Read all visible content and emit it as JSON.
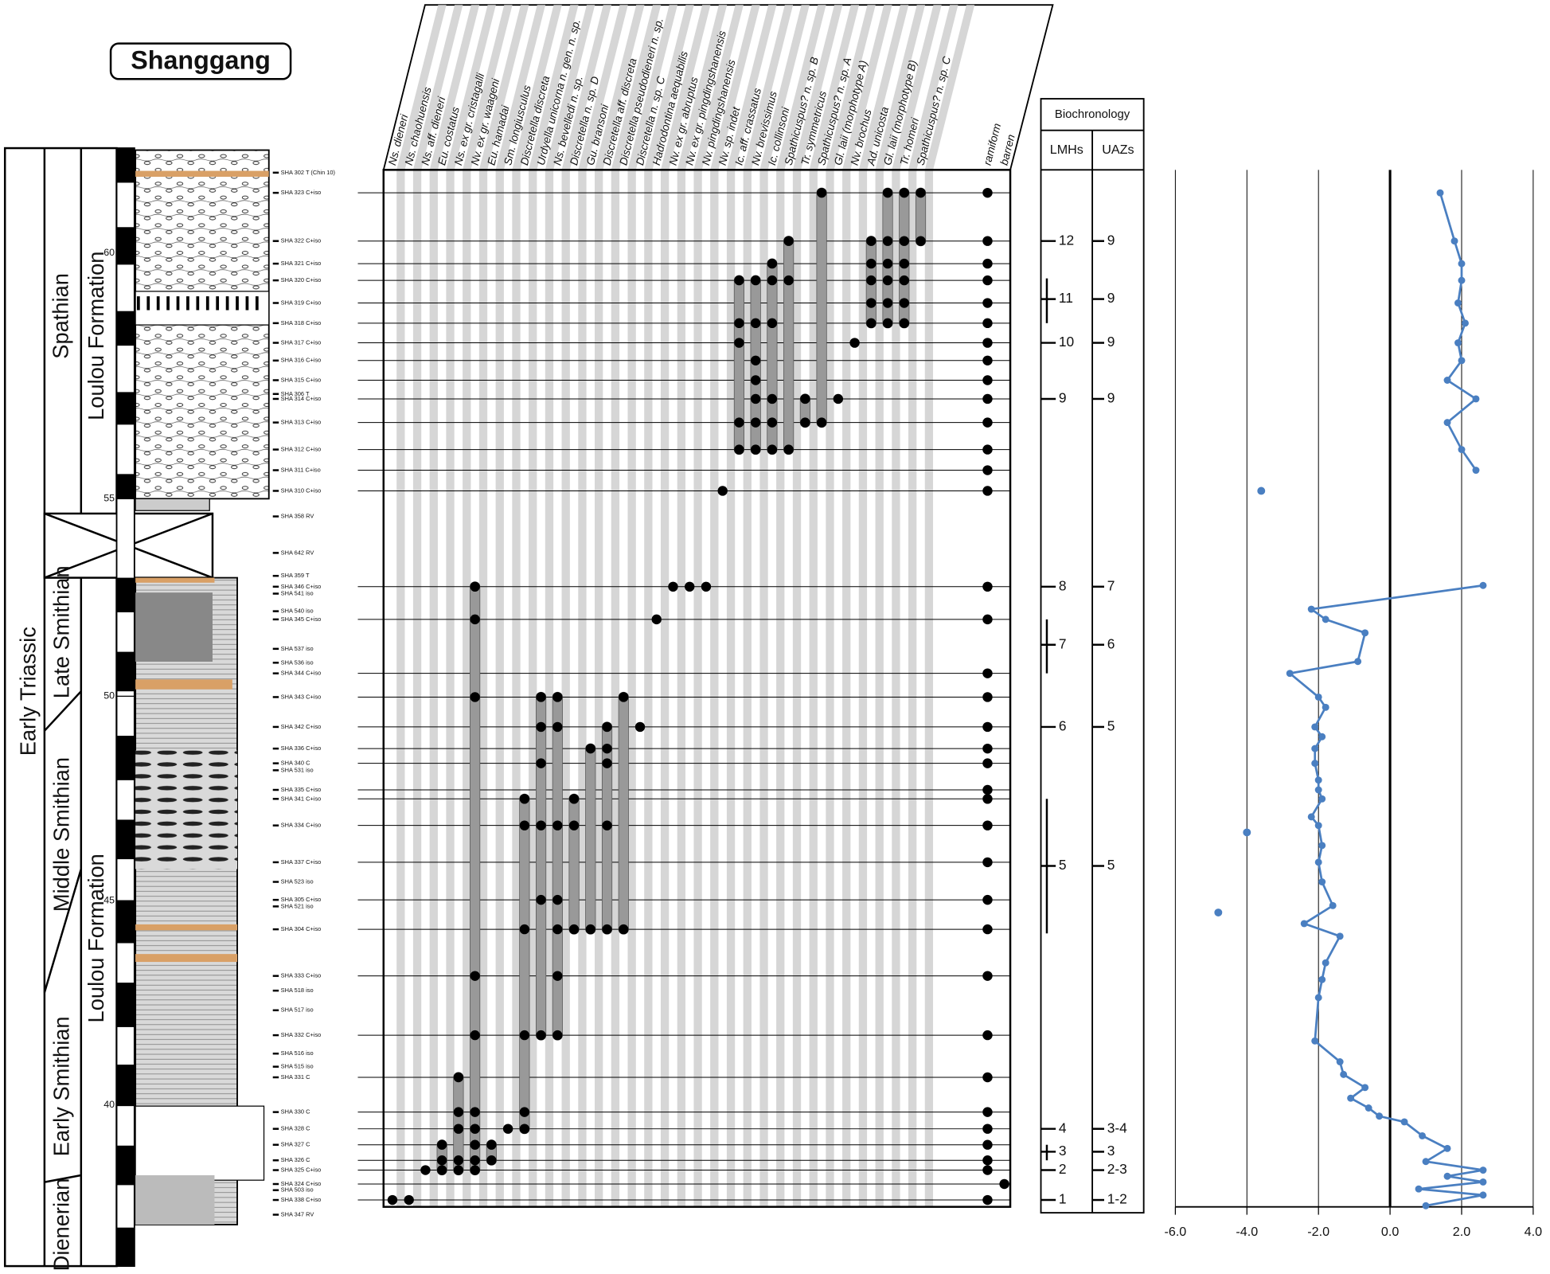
{
  "title": "Shanggang",
  "system": "Early Triassic",
  "stages": [
    "Spathian",
    "Late Smithian",
    "Middle Smithian",
    "Early Smithian",
    "Dienerian"
  ],
  "formations": [
    "Loulou Formation",
    "Loulou Formation"
  ],
  "depth_ticks": [
    60,
    55,
    50,
    45,
    40
  ],
  "taxa": [
    "Ns. dieneri",
    "Ns. chaohuensis",
    "Ns. aff. dieneri",
    "Eu. costatus",
    "Ns. ex gr. cristagalli",
    "Nv. ex gr. waageni",
    "Eu. hamadai",
    "Sm. longiusculus",
    "Discretella discreta",
    "Urdyella unicorna n. gen. n. sp.",
    "Ns. bevelledi n. sp.",
    "Discretella n. sp. D",
    "Gu. bransoni",
    "Discretella aff. discreta",
    "Discretella pseudodieneri n. sp.",
    "Discretella n. sp. C",
    "Hadrodontina aequabilis",
    "Nv. ex gr. abruptus",
    "Nv. ex gr. pingdingshanensis",
    "Nv. pingdingshanensis",
    "Nv. sp. indet",
    "Ic. aff. crassatus",
    "Nv. brevissimus",
    "Ic. collinsoni",
    "Spathicuspus? n. sp. B",
    "Tr. symmetricus",
    "Spathicuspus? n. sp. A",
    "Gl. laii (morphotype A)",
    "Nv. brochus",
    "Ad. unicosta",
    "Gl. laii (morphotype B)",
    "Tr. homeri",
    "Spathicuspus? n. sp. C",
    "ramiform",
    "barren"
  ],
  "rows": [
    {
      "sample": "SHA 323 C+iso",
      "depth": 61.22,
      "taxa": [
        26,
        30,
        31,
        32,
        33
      ]
    },
    {
      "sample": "SHA 322 C+iso",
      "depth": 60.24,
      "taxa": [
        24,
        29,
        30,
        31,
        32,
        33
      ]
    },
    {
      "sample": "SHA 321 C+iso",
      "depth": 59.78,
      "taxa": [
        23,
        29,
        30,
        31,
        33
      ]
    },
    {
      "sample": "SHA 320 C+iso",
      "depth": 59.44,
      "taxa": [
        21,
        22,
        23,
        24,
        29,
        30,
        31,
        33
      ]
    },
    {
      "sample": "SHA 319 C+iso",
      "depth": 58.98,
      "taxa": [
        29,
        30,
        31,
        33
      ]
    },
    {
      "sample": "SHA 318 C+iso",
      "depth": 58.57,
      "taxa": [
        21,
        22,
        23,
        29,
        30,
        31,
        33
      ]
    },
    {
      "sample": "SHA 317 C+iso",
      "depth": 58.17,
      "taxa": [
        21,
        28,
        33
      ]
    },
    {
      "sample": "SHA 316 C+iso",
      "depth": 57.81,
      "taxa": [
        22,
        33
      ]
    },
    {
      "sample": "SHA 315 C+iso",
      "depth": 57.41,
      "taxa": [
        22,
        33
      ]
    },
    {
      "sample": "SHA 314 C+iso",
      "depth": 57.03,
      "taxa": [
        22,
        23,
        25,
        27,
        33
      ]
    },
    {
      "sample": "SHA 313 C+iso",
      "depth": 56.55,
      "taxa": [
        21,
        22,
        23,
        25,
        26,
        33
      ]
    },
    {
      "sample": "SHA 312 C+iso",
      "depth": 56.0,
      "taxa": [
        21,
        22,
        23,
        24,
        33
      ]
    },
    {
      "sample": "SHA 311 C+iso",
      "depth": 55.58,
      "taxa": [
        33
      ]
    },
    {
      "sample": "SHA 310 C+iso",
      "depth": 55.16,
      "taxa": [
        20,
        33
      ]
    },
    {
      "sample": "SHA 346 C+iso",
      "depth": 52.68,
      "taxa": [
        5,
        17,
        18,
        19,
        33
      ]
    },
    {
      "sample": "SHA 345 C+iso",
      "depth": 51.88,
      "taxa": [
        5,
        16,
        33
      ]
    },
    {
      "sample": "SHA 344 C+iso",
      "depth": 50.56,
      "taxa": [
        33
      ]
    },
    {
      "sample": "SHA 343 C+iso",
      "depth": 49.98,
      "taxa": [
        5,
        9,
        10,
        14,
        33
      ]
    },
    {
      "sample": "SHA 342 C+iso",
      "depth": 49.25,
      "taxa": [
        9,
        10,
        13,
        15,
        33
      ]
    },
    {
      "sample": "SHA 336 C+iso",
      "depth": 48.72,
      "taxa": [
        12,
        13,
        33
      ]
    },
    {
      "sample": "SHA 340 C",
      "depth": 48.36,
      "taxa": [
        9,
        13,
        33
      ]
    },
    {
      "sample": "SHA 335 C+iso",
      "depth": 47.71,
      "taxa": [
        33
      ]
    },
    {
      "sample": "SHA 341 C+iso",
      "depth": 47.49,
      "taxa": [
        8,
        11,
        33
      ]
    },
    {
      "sample": "SHA 334 C+iso",
      "depth": 46.84,
      "taxa": [
        8,
        9,
        10,
        11,
        13,
        33
      ]
    },
    {
      "sample": "SHA 337 C+iso",
      "depth": 45.94,
      "taxa": [
        33
      ]
    },
    {
      "sample": "SHA 305 C+iso",
      "depth": 45.02,
      "taxa": [
        9,
        10,
        33
      ]
    },
    {
      "sample": "SHA 304 C+iso",
      "depth": 44.3,
      "taxa": [
        8,
        10,
        11,
        12,
        13,
        14,
        33
      ]
    },
    {
      "sample": "SHA 333 C+iso",
      "depth": 43.16,
      "taxa": [
        5,
        10,
        33
      ]
    },
    {
      "sample": "SHA 332 C+iso",
      "depth": 41.71,
      "taxa": [
        5,
        8,
        9,
        10,
        33
      ]
    },
    {
      "sample": "SHA 331 C",
      "depth": 40.68,
      "taxa": [
        4,
        33
      ]
    },
    {
      "sample": "SHA 330 C",
      "depth": 39.83,
      "taxa": [
        4,
        5,
        8,
        33
      ]
    },
    {
      "sample": "SHA 328 C",
      "depth": 39.42,
      "taxa": [
        4,
        5,
        7,
        8,
        33
      ]
    },
    {
      "sample": "SHA 327 C",
      "depth": 39.03,
      "taxa": [
        3,
        5,
        6,
        33
      ]
    },
    {
      "sample": "SHA 326 C",
      "depth": 38.65,
      "taxa": [
        3,
        4,
        5,
        6,
        33
      ]
    },
    {
      "sample": "SHA 325 C+iso",
      "depth": 38.41,
      "taxa": [
        2,
        3,
        4,
        5,
        33
      ]
    },
    {
      "sample": "SHA 324 C+iso",
      "depth": 38.07,
      "taxa": [
        34
      ]
    },
    {
      "sample": "SHA 338 C+iso",
      "depth": 37.68,
      "taxa": [
        0,
        1,
        33
      ]
    }
  ],
  "other_samples": [
    {
      "sample": "SHA 302 T (Chin 10)",
      "depth": 61.63
    },
    {
      "sample": "SHA 306 T",
      "depth": 57.13
    },
    {
      "sample": "SHA 358 RV",
      "depth": 54.53
    },
    {
      "sample": "SHA 642 RV",
      "depth": 53.56
    },
    {
      "sample": "SHA 359 T",
      "depth": 52.95
    },
    {
      "sample": "SHA 541 iso",
      "depth": 52.51
    },
    {
      "sample": "SHA 540 iso",
      "depth": 52.08
    },
    {
      "sample": "SHA 537 iso",
      "depth": 51.16
    },
    {
      "sample": "SHA 536 iso",
      "depth": 50.82
    },
    {
      "sample": "SHA 531 iso",
      "depth": 48.19
    },
    {
      "sample": "SHA 523 iso",
      "depth": 45.46
    },
    {
      "sample": "SHA 521 iso",
      "depth": 44.86
    },
    {
      "sample": "SHA 518 iso",
      "depth": 42.8
    },
    {
      "sample": "SHA 517 iso",
      "depth": 42.32
    },
    {
      "sample": "SHA 516 iso",
      "depth": 41.26
    },
    {
      "sample": "SHA 515 iso",
      "depth": 40.94
    },
    {
      "sample": "SHA 503 iso",
      "depth": 37.92
    },
    {
      "sample": "SHA 347 RV",
      "depth": 37.32
    }
  ],
  "biochronology": {
    "title": "Biochronology",
    "columns": [
      "LMHs",
      "UAZs"
    ],
    "zones": [
      {
        "lmh": "12",
        "uaz": "9",
        "depth": 60.24
      },
      {
        "lmh": "11",
        "uaz": "9",
        "depth": 59.06,
        "range": [
          59.48,
          58.57
        ]
      },
      {
        "lmh": "10",
        "uaz": "9",
        "depth": 58.17
      },
      {
        "lmh": "9",
        "uaz": "9",
        "depth": 57.03
      },
      {
        "lmh": "8",
        "uaz": "7",
        "depth": 52.68
      },
      {
        "lmh": "7",
        "uaz": "6",
        "depth": 51.26,
        "range": [
          51.88,
          50.56
        ]
      },
      {
        "lmh": "6",
        "uaz": "5",
        "depth": 49.25
      },
      {
        "lmh": "5",
        "uaz": "5",
        "depth": 45.85,
        "range": [
          47.49,
          44.2
        ]
      },
      {
        "lmh": "4",
        "uaz": "3-4",
        "depth": 39.42
      },
      {
        "lmh": "3",
        "uaz": "3",
        "depth": 38.86,
        "range": [
          39.03,
          38.65
        ]
      },
      {
        "lmh": "2",
        "uaz": "2-3",
        "depth": 38.41
      },
      {
        "lmh": "1",
        "uaz": "1-2",
        "depth": 37.68
      }
    ]
  },
  "isotope": {
    "xlim": [
      -6,
      4
    ],
    "xticks": [
      {
        "value": -6,
        "label": "-6.0"
      },
      {
        "value": -4,
        "label": "-4.0"
      },
      {
        "value": -2,
        "label": "-2.0"
      },
      {
        "value": 0,
        "label": "0.0"
      },
      {
        "value": 2,
        "label": "2.0"
      },
      {
        "value": 4,
        "label": "4.0"
      }
    ],
    "grid": true,
    "color": "#4a7fc1",
    "segments": [
      {
        "depth": [
          61.22,
          60.24,
          59.78,
          59.44,
          58.98,
          58.57,
          58.17,
          57.81,
          57.41,
          57.03,
          56.55,
          56.0,
          55.58
        ],
        "values": [
          1.4,
          1.8,
          2.0,
          2.0,
          1.9,
          2.1,
          1.9,
          2.0,
          1.6,
          2.4,
          1.6,
          2.0,
          2.4
        ]
      },
      {
        "depth": [
          52.71,
          52.13,
          51.88,
          51.55,
          50.85,
          50.56,
          49.98,
          49.73,
          49.25,
          49.01,
          48.72,
          48.36,
          47.95,
          47.71,
          47.49,
          47.05,
          46.84,
          46.35,
          45.94,
          45.46,
          44.88,
          44.44,
          44.13,
          43.48,
          43.07,
          42.63,
          41.57,
          41.06,
          40.75,
          40.43,
          40.17,
          39.93,
          39.73,
          39.59,
          39.25,
          38.94,
          38.62,
          38.41,
          38.26,
          38.12,
          37.95,
          37.8,
          37.54
        ],
        "values": [
          2.6,
          -2.2,
          -1.8,
          -0.7,
          -0.9,
          -2.8,
          -2.0,
          -1.8,
          -2.1,
          -1.9,
          -2.1,
          -2.1,
          -2.0,
          -2.0,
          -1.9,
          -2.2,
          -2.0,
          -1.9,
          -2.0,
          -1.9,
          -1.6,
          -2.4,
          -1.4,
          -1.8,
          -1.9,
          -2.0,
          -2.1,
          -1.4,
          -1.3,
          -0.7,
          -1.1,
          -0.6,
          -0.3,
          0.4,
          0.9,
          1.6,
          1.0,
          2.6,
          1.6,
          2.6,
          0.8,
          2.6,
          1.0
        ]
      }
    ],
    "outliers": {
      "depth": [
        55.16,
        46.67,
        44.71
      ],
      "values": [
        -3.6,
        -4.0,
        -4.8
      ]
    }
  }
}
